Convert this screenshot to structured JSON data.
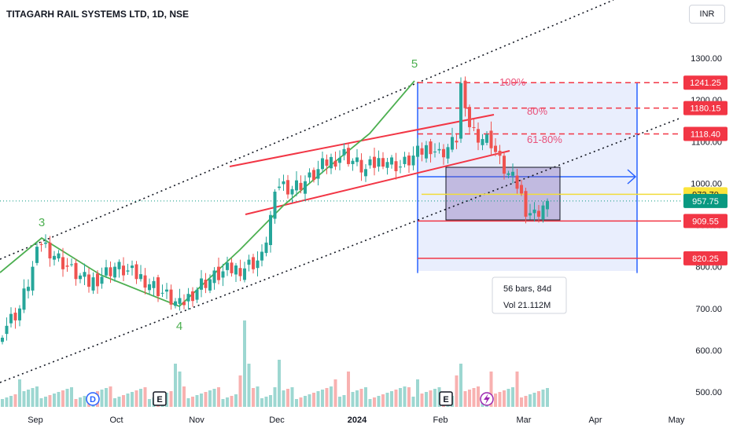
{
  "header": {
    "title": "TITAGARH RAIL SYSTEMS LTD, 1D, NSE",
    "currency": "INR"
  },
  "chart_data": {
    "type": "candlestick",
    "symbol": "TITAGARH RAIL SYSTEMS LTD",
    "interval": "1D",
    "exchange": "NSE",
    "y_ticks": [
      "1300.00",
      "1200.00",
      "1100.00",
      "1000.00",
      "900.00",
      "800.00",
      "700.00",
      "600.00",
      "500.00"
    ],
    "x_ticks": [
      "Sep",
      "Oct",
      "Nov",
      "Dec",
      "2024",
      "Feb",
      "Mar",
      "Apr",
      "May"
    ],
    "ohlc_approx": [
      {
        "period": "Sep start",
        "low": 640,
        "high": 700
      },
      {
        "period": "Sep peak (wave 3)",
        "high": 860
      },
      {
        "period": "Oct",
        "range": [
          760,
          850
        ]
      },
      {
        "period": "Oct low (wave 4)",
        "low": 700
      },
      {
        "period": "Nov",
        "range": [
          740,
          820
        ]
      },
      {
        "period": "Late Nov breakout",
        "high": 1030
      },
      {
        "period": "Dec-Jan",
        "range": [
          960,
          1120
        ]
      },
      {
        "period": "Late Jan peak (wave 5)",
        "high": 1241.25
      },
      {
        "period": "Feb",
        "range": [
          909,
          1110
        ]
      },
      {
        "period": "Last",
        "close": 957.75
      }
    ],
    "wave_labels": [
      "3",
      "4",
      "5"
    ],
    "fib_levels": [
      {
        "label": "100%",
        "price": 1241.25
      },
      {
        "label": "80%",
        "price": 1180.15
      },
      {
        "label": "61-80%",
        "price": 1118.4
      }
    ],
    "price_tags": [
      {
        "value": "1241.25",
        "bg": "#f23645",
        "fg": "#ffffff"
      },
      {
        "value": "1180.15",
        "bg": "#f23645",
        "fg": "#ffffff"
      },
      {
        "value": "1118.40",
        "bg": "#f23645",
        "fg": "#ffffff"
      },
      {
        "value": "973.70",
        "bg": "#fbe43b",
        "fg": "#131722"
      },
      {
        "value": "957.75",
        "bg": "#089981",
        "fg": "#ffffff"
      },
      {
        "value": "909.55",
        "bg": "#f23645",
        "fg": "#ffffff"
      },
      {
        "value": "820.25",
        "bg": "#f23645",
        "fg": "#ffffff"
      }
    ],
    "measure": {
      "bars": "56 bars, 84d",
      "volume": "Vol 21.112M"
    },
    "events": [
      "D",
      "E",
      "E"
    ],
    "colors": {
      "up": "#26a69a",
      "down": "#ef5350",
      "wave": "#4caf50",
      "channel": "#f23645",
      "range_fill": "#dbe3fb",
      "range_border": "#2962ff"
    }
  }
}
